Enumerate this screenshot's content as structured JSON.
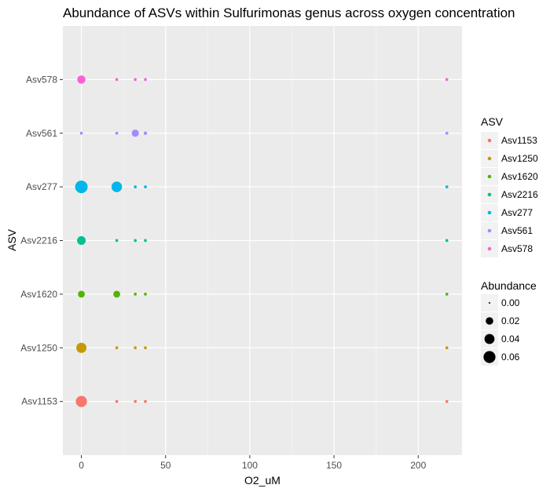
{
  "chart_data": {
    "type": "scatter",
    "title": "Abundance of ASVs within Sulfurimonas genus across oxygen concentration",
    "xlabel": "O2_uM",
    "ylabel": "ASV",
    "xlim": [
      -11,
      226
    ],
    "x_ticks": [
      0,
      50,
      100,
      150,
      200
    ],
    "categories": [
      "Asv1153",
      "Asv1250",
      "Asv1620",
      "Asv2216",
      "Asv277",
      "Asv561",
      "Asv578"
    ],
    "grid": true,
    "legend_position": "right",
    "series": [
      {
        "name": "Asv1153",
        "color": "#F8766D",
        "points": [
          {
            "x": 0,
            "abundance": 0.052
          },
          {
            "x": 21,
            "abundance": 0.001
          },
          {
            "x": 32,
            "abundance": 0.001
          },
          {
            "x": 38,
            "abundance": 0.001
          },
          {
            "x": 217,
            "abundance": 0.001
          }
        ]
      },
      {
        "name": "Asv1250",
        "color": "#C49A00",
        "points": [
          {
            "x": 0,
            "abundance": 0.042
          },
          {
            "x": 21,
            "abundance": 0.001
          },
          {
            "x": 32,
            "abundance": 0.001
          },
          {
            "x": 38,
            "abundance": 0.001
          },
          {
            "x": 217,
            "abundance": 0.001
          }
        ]
      },
      {
        "name": "Asv1620",
        "color": "#53B400",
        "points": [
          {
            "x": 0,
            "abundance": 0.016
          },
          {
            "x": 21,
            "abundance": 0.016
          },
          {
            "x": 32,
            "abundance": 0.001
          },
          {
            "x": 38,
            "abundance": 0.001
          },
          {
            "x": 217,
            "abundance": 0.001
          }
        ]
      },
      {
        "name": "Asv2216",
        "color": "#00C094",
        "points": [
          {
            "x": 0,
            "abundance": 0.028
          },
          {
            "x": 21,
            "abundance": 0.001
          },
          {
            "x": 32,
            "abundance": 0.001
          },
          {
            "x": 38,
            "abundance": 0.001
          },
          {
            "x": 217,
            "abundance": 0.001
          }
        ]
      },
      {
        "name": "Asv277",
        "color": "#00B6EB",
        "points": [
          {
            "x": 0,
            "abundance": 0.068
          },
          {
            "x": 21,
            "abundance": 0.045
          },
          {
            "x": 32,
            "abundance": 0.001
          },
          {
            "x": 38,
            "abundance": 0.001
          },
          {
            "x": 217,
            "abundance": 0.001
          }
        ]
      },
      {
        "name": "Asv561",
        "color": "#A58AFF",
        "points": [
          {
            "x": 0,
            "abundance": 0.001
          },
          {
            "x": 21,
            "abundance": 0.001
          },
          {
            "x": 32,
            "abundance": 0.018
          },
          {
            "x": 38,
            "abundance": 0.002
          },
          {
            "x": 217,
            "abundance": 0.001
          }
        ]
      },
      {
        "name": "Asv578",
        "color": "#FB61D7",
        "points": [
          {
            "x": 0,
            "abundance": 0.025
          },
          {
            "x": 21,
            "abundance": 0.001
          },
          {
            "x": 32,
            "abundance": 0.001
          },
          {
            "x": 38,
            "abundance": 0.001
          },
          {
            "x": 217,
            "abundance": 0.001
          }
        ]
      }
    ],
    "legend_color": {
      "title": "ASV",
      "items": [
        "Asv1153",
        "Asv1250",
        "Asv1620",
        "Asv2216",
        "Asv277",
        "Asv561",
        "Asv578"
      ]
    },
    "legend_size": {
      "title": "Abundance",
      "items": [
        {
          "label": "0.00",
          "value": 0.0
        },
        {
          "label": "0.02",
          "value": 0.02
        },
        {
          "label": "0.04",
          "value": 0.04
        },
        {
          "label": "0.06",
          "value": 0.06
        }
      ]
    }
  }
}
